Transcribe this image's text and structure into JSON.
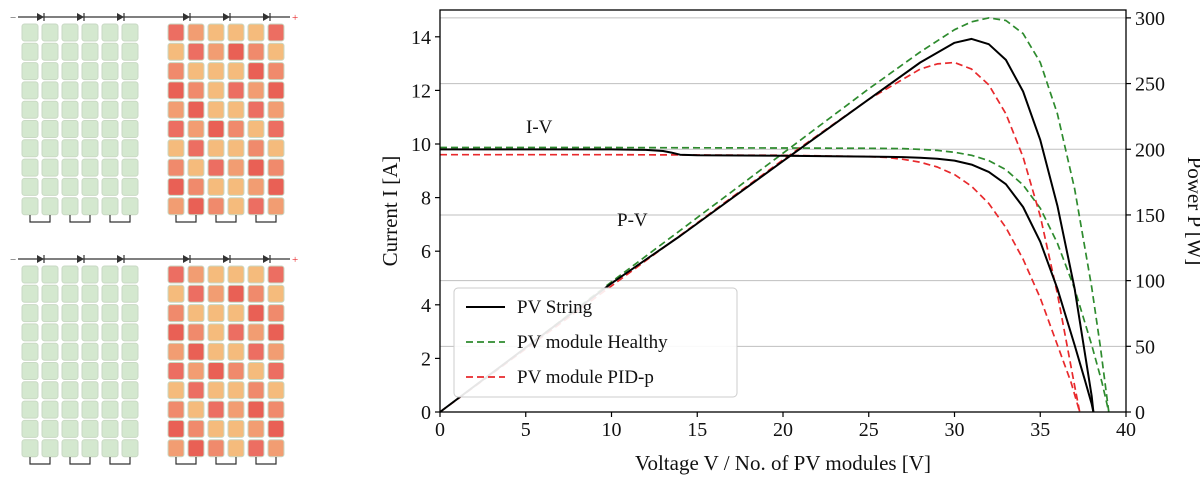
{
  "panels": {
    "healthy_color": "#d4e8cf",
    "pid_colors": [
      "#ec6e62",
      "#f08a6c",
      "#f29d72",
      "#f5bb7c",
      "#e96055"
    ]
  },
  "chart_data": {
    "type": "line",
    "xlabel": "Voltage V / No. of PV modules [V]",
    "ylabel_left": "Current I [A]",
    "ylabel_right": "Power P [W]",
    "xlim": [
      0,
      40
    ],
    "ylim_left": [
      0,
      15
    ],
    "ylim_right": [
      0,
      306
    ],
    "x_ticks": [
      "0",
      "5",
      "10",
      "15",
      "20",
      "25",
      "30",
      "35",
      "40"
    ],
    "y_left_ticks": [
      "0",
      "2",
      "4",
      "6",
      "8",
      "10",
      "12",
      "14"
    ],
    "y_right_ticks": [
      "0",
      "50",
      "100",
      "150",
      "200",
      "250",
      "300"
    ],
    "grid": "horizontal",
    "annotations": [
      {
        "text": "I-V",
        "x": 5.5,
        "y": 10.6
      },
      {
        "text": "P-V",
        "x": 11.5,
        "y": 6.7
      }
    ],
    "legend": {
      "position": "lower-left",
      "entries": [
        "PV String",
        "PV module Healthy",
        "PV module PID-p"
      ]
    },
    "series": [
      {
        "name": "PV String",
        "color": "#000000",
        "dash": "solid",
        "iv": {
          "x": [
            0,
            5,
            10,
            12,
            13,
            13.5,
            14,
            15,
            20,
            25,
            27,
            28,
            29,
            30,
            31,
            32,
            33,
            34,
            35,
            36,
            37,
            37.6,
            38,
            38.1
          ],
          "y": [
            9.8,
            9.8,
            9.8,
            9.78,
            9.74,
            9.68,
            9.6,
            9.58,
            9.56,
            9.53,
            9.51,
            9.49,
            9.45,
            9.38,
            9.23,
            8.96,
            8.5,
            7.65,
            6.35,
            4.6,
            2.5,
            1.2,
            0.3,
            0
          ]
        },
        "pv": {
          "x": [
            0,
            5,
            10,
            14,
            20,
            25,
            28,
            30,
            31,
            32,
            33,
            34,
            35,
            36,
            37,
            38,
            38.1
          ],
          "y": [
            0,
            49,
            98,
            134,
            191,
            238,
            266,
            281,
            284,
            280,
            268,
            244,
            207,
            157,
            94,
            12,
            0
          ]
        }
      },
      {
        "name": "PV module Healthy",
        "color": "#2e8b2e",
        "dash": "dashed",
        "iv": {
          "x": [
            0,
            5,
            10,
            15,
            20,
            25,
            27,
            28,
            29,
            30,
            31,
            32,
            33,
            34,
            35,
            36,
            37,
            38,
            38.6,
            39
          ],
          "y": [
            9.87,
            9.87,
            9.87,
            9.86,
            9.85,
            9.84,
            9.83,
            9.8,
            9.76,
            9.69,
            9.58,
            9.38,
            9.04,
            8.47,
            7.6,
            6.3,
            4.6,
            2.5,
            1.1,
            0
          ]
        },
        "pv": {
          "x": [
            0,
            5,
            10,
            15,
            20,
            25,
            28,
            30,
            31,
            32,
            33,
            34,
            35,
            36,
            37,
            38,
            38.5,
            39
          ],
          "y": [
            0,
            49,
            99,
            148,
            197,
            246,
            274,
            291,
            297,
            300,
            298,
            288,
            266,
            227,
            170,
            95,
            50,
            0
          ]
        }
      },
      {
        "name": "PV module PID-p",
        "color": "#e8292c",
        "dash": "dashed",
        "iv": {
          "x": [
            0,
            5,
            10,
            15,
            20,
            25,
            26,
            27,
            28,
            29,
            30,
            31,
            32,
            33,
            34,
            35,
            36,
            36.8,
            37.3
          ],
          "y": [
            9.6,
            9.6,
            9.6,
            9.59,
            9.58,
            9.53,
            9.5,
            9.43,
            9.32,
            9.14,
            8.86,
            8.42,
            7.78,
            6.88,
            5.7,
            4.25,
            2.5,
            1.1,
            0
          ]
        },
        "pv": {
          "x": [
            0,
            5,
            10,
            15,
            20,
            25,
            28,
            29,
            30,
            31,
            32,
            33,
            34,
            35,
            36,
            37,
            37.3
          ],
          "y": [
            0,
            48,
            96,
            144,
            192,
            238,
            261,
            265,
            266,
            261,
            249,
            227,
            194,
            149,
            90,
            20,
            0
          ]
        }
      }
    ]
  }
}
